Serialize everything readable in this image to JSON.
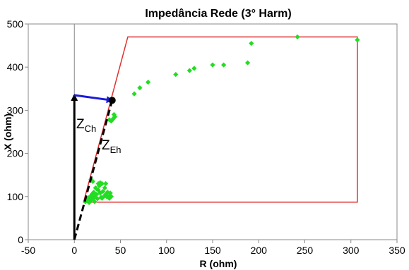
{
  "chart_data": {
    "type": "scatter",
    "title": "Impedância Rede (3° Harm)",
    "xlabel": "R (ohm)",
    "ylabel": "X (ohm)",
    "xlim": [
      -50,
      350
    ],
    "ylim": [
      0,
      500
    ],
    "xticks": [
      -50,
      0,
      50,
      100,
      150,
      200,
      250,
      300,
      350
    ],
    "yticks": [
      0,
      100,
      200,
      300,
      400,
      500
    ],
    "grid": false,
    "legend": "none",
    "point_color": "#22dd22",
    "points": [
      [
        12,
        88
      ],
      [
        14,
        92
      ],
      [
        15,
        95
      ],
      [
        16,
        98
      ],
      [
        17,
        90
      ],
      [
        18,
        100
      ],
      [
        19,
        105
      ],
      [
        20,
        95
      ],
      [
        21,
        110
      ],
      [
        22,
        100
      ],
      [
        23,
        120
      ],
      [
        24,
        105
      ],
      [
        25,
        95
      ],
      [
        26,
        115
      ],
      [
        27,
        125
      ],
      [
        28,
        108
      ],
      [
        29,
        98
      ],
      [
        30,
        130
      ],
      [
        31,
        112
      ],
      [
        32,
        100
      ],
      [
        33,
        120
      ],
      [
        34,
        105
      ],
      [
        35,
        100
      ],
      [
        36,
        110
      ],
      [
        37,
        98
      ],
      [
        38,
        102
      ],
      [
        39,
        108
      ],
      [
        40,
        100
      ],
      [
        18,
        140
      ],
      [
        20,
        135
      ],
      [
        26,
        130
      ],
      [
        24,
        118
      ],
      [
        22,
        88
      ],
      [
        16,
        86
      ],
      [
        28,
        132
      ],
      [
        34,
        130
      ],
      [
        38,
        96
      ],
      [
        30,
        96
      ],
      [
        40,
        275
      ],
      [
        42,
        280
      ],
      [
        44,
        285
      ],
      [
        38,
        278
      ],
      [
        43,
        290
      ],
      [
        65,
        338
      ],
      [
        71,
        352
      ],
      [
        80,
        365
      ],
      [
        110,
        383
      ],
      [
        125,
        392
      ],
      [
        130,
        397
      ],
      [
        150,
        405
      ],
      [
        162,
        405
      ],
      [
        188,
        410
      ],
      [
        192,
        455
      ],
      [
        242,
        470
      ],
      [
        307,
        463
      ]
    ],
    "region": {
      "color": "#e03030",
      "vertices": [
        [
          10,
          87
        ],
        [
          58,
          470
        ],
        [
          307,
          470
        ],
        [
          307,
          87
        ]
      ]
    },
    "annotations": {
      "zch_label": {
        "main": "Z",
        "sub": "Ch"
      },
      "zeh_label": {
        "main": "Z",
        "sub": "Eh"
      },
      "vector_x_color": "#000000",
      "vector_r_color": "#1a1adb",
      "vector_z_color": "#000000",
      "tip_point": [
        41,
        323
      ],
      "vertical_vector": [
        [
          0,
          0
        ],
        [
          0,
          335
        ]
      ],
      "horizontal_vector": [
        [
          0,
          335
        ],
        [
          41,
          323
        ]
      ],
      "dashed_vector": [
        [
          0,
          0
        ],
        [
          41,
          323
        ]
      ]
    }
  }
}
